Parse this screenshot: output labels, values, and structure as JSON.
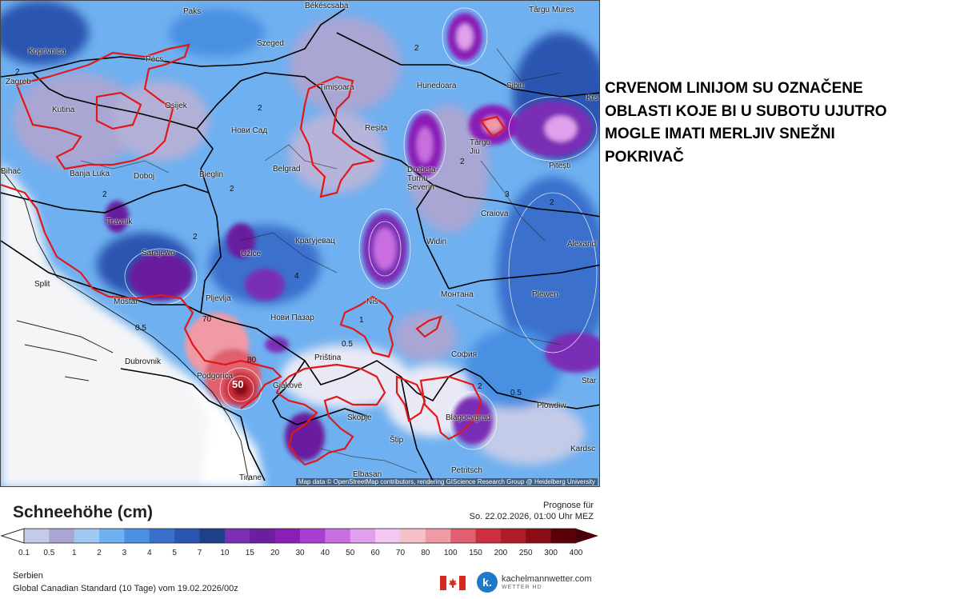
{
  "note": {
    "lines": [
      "CRVENOM LINIJOM SU OZNAČENE",
      "OBLASTI KOJE BI U SUBOTU UJUTRO",
      "MOGLE IMATI MERLJIV SNEŽNI",
      "POKRIVAČ"
    ]
  },
  "legend": {
    "title": "Schneehöhe (cm)",
    "ticks": [
      "0.1",
      "0.5",
      "1",
      "2",
      "3",
      "4",
      "5",
      "7",
      "10",
      "15",
      "20",
      "30",
      "40",
      "50",
      "60",
      "70",
      "80",
      "100",
      "150",
      "200",
      "250",
      "300",
      "400"
    ],
    "colors": [
      "#f0f0ff",
      "#c4cbe8",
      "#a9a6d4",
      "#9fc8f2",
      "#6fb0f0",
      "#4a90e2",
      "#3a70cc",
      "#2a55b0",
      "#1e3f8a",
      "#7a2fb5",
      "#6b1f9e",
      "#8a1fb8",
      "#a83fd0",
      "#c86ee0",
      "#e0a0ee",
      "#f2c8f2",
      "#f5c0c8",
      "#f09aa6",
      "#e06070",
      "#cc3040",
      "#b01c28",
      "#8a0c14",
      "#5a0008"
    ]
  },
  "forecast": {
    "label": "Prognose für",
    "time": "So. 22.02.2026, 01:00 Uhr MEZ"
  },
  "footer": {
    "region": "Serbien",
    "model": "Global Canadian Standard (10 Tage) vom 19.02.2026/00z",
    "logo_text": "kachelmannwetter.com",
    "logo_sub": "WETTER HD",
    "logo_letter": "k."
  },
  "map": {
    "attribution": "Map data © OpenStreetMap contributors, rendering GIScience Research Group @ Heidelberg University",
    "cities": [
      "Paks",
      "Békéscsaba",
      "Târgu Mureș",
      "Koprivnica",
      "Pécs",
      "Szeged",
      "Zagreb",
      "Kutina",
      "Osijek",
      "Timișoara",
      "Hunedoara",
      "Sibiu",
      "Krs",
      "Нови Сад",
      "Reșița",
      "Târgu Jiu",
      "Banja Luka",
      "Doboj",
      "Bieglin",
      "Belgrad",
      "Drobeta-Turnu Severin",
      "Pitești",
      "Bihać",
      "Craiova",
      "Travnik",
      "Крагујевац",
      "Widin",
      "Alexand",
      "Sarajewo",
      "Užice",
      "Split",
      "Mostar",
      "Pljevlja",
      "Niš",
      "Монтана",
      "Plewen",
      "Нови Пазар",
      "Dubrovnik",
      "Priština",
      "София",
      "Podgorica",
      "Gjakovë",
      "Skopje",
      "Blagoevgrad",
      "Plowdiw",
      "Star",
      "Štip",
      "Kardsc",
      "Petritsch",
      "Tirane",
      "Elbasan"
    ],
    "contour_labels": [
      "2",
      "2",
      "2",
      "2",
      "2",
      "3",
      "2",
      "2",
      "4",
      "0.5",
      "1",
      "70",
      "80",
      "50",
      "0.5",
      "0.5",
      "2",
      "2"
    ]
  }
}
